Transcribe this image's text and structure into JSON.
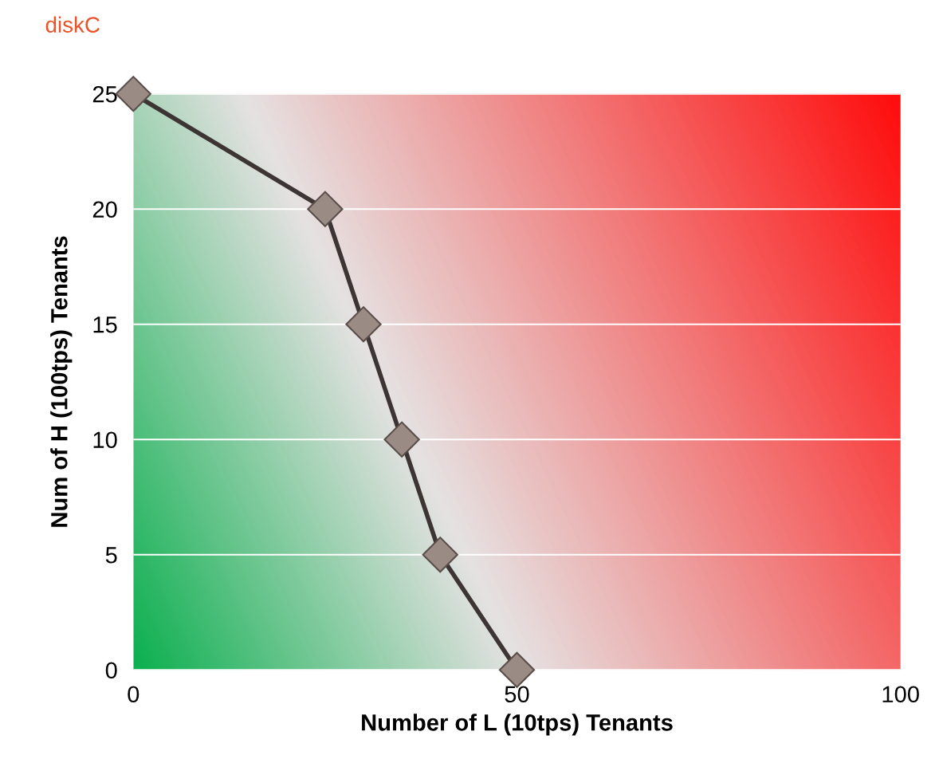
{
  "chart_data": {
    "type": "line",
    "title": "diskC",
    "xlabel": "Number of L (10tps) Tenants",
    "ylabel": "Num of H (100tps) Tenants",
    "x": [
      0,
      25,
      30,
      35,
      40,
      50
    ],
    "series": [
      {
        "color": "#3d3533",
        "values": [
          25,
          20,
          15,
          10,
          5,
          0
        ]
      }
    ],
    "xlim": [
      0,
      100
    ],
    "xticks": [
      0,
      50,
      100
    ],
    "ylim": [
      0,
      25
    ],
    "yticks": [
      0,
      5,
      10,
      15,
      20,
      25
    ],
    "grid": "y",
    "marker": "diamond",
    "line_style": "solid"
  }
}
